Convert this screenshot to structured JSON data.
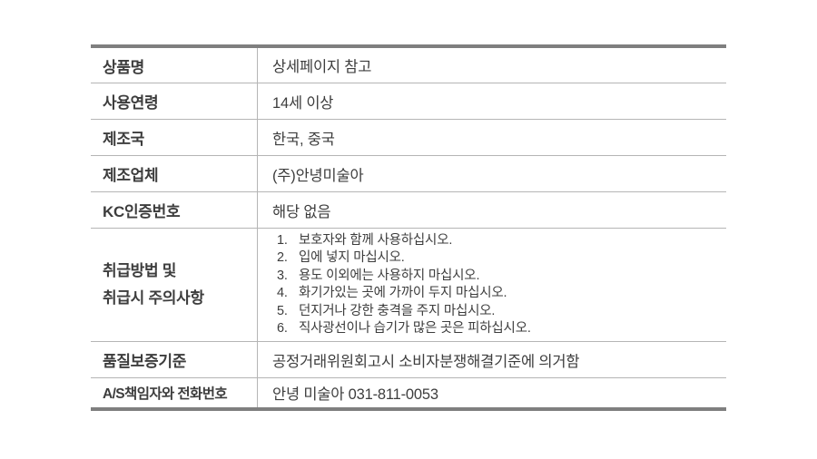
{
  "page": {
    "background_color": "#ffffff",
    "text_color": "#3d3d3d",
    "thick_border_color": "#7f7f7f",
    "thin_border_color": "#b5b5b5"
  },
  "table": {
    "rows": [
      {
        "label": "상품명",
        "value": "상세페이지 참고"
      },
      {
        "label": "사용연령",
        "value": "14세 이상"
      },
      {
        "label": "제조국",
        "value": "한국, 중국"
      },
      {
        "label": "제조업체",
        "value": "(주)안녕미술아"
      },
      {
        "label": "KC인증번호",
        "value": "해당 없음"
      },
      {
        "label_line1": "취급방법 및",
        "label_line2": "취급시 주의사항",
        "items": [
          {
            "num": "1.",
            "text": "보호자와 함께 사용하십시오."
          },
          {
            "num": "2.",
            "text": "입에 넣지 마십시오."
          },
          {
            "num": "3.",
            "text": "용도 이외에는 사용하지 마십시오."
          },
          {
            "num": "4.",
            "text": "화기가있는 곳에 가까이 두지 마십시오."
          },
          {
            "num": "5.",
            "text": "던지거나 강한 충격을 주지 마십시오."
          },
          {
            "num": "6.",
            "text": "직사광선이나 습기가 많은 곳은 피하십시오."
          }
        ]
      },
      {
        "label": "품질보증기준",
        "value": "공정거래위원회고시 소비자분쟁해결기준에 의거함"
      },
      {
        "label": "A/S책임자와 전화번호",
        "value": "안녕 미술아 031-811-0053"
      }
    ]
  }
}
